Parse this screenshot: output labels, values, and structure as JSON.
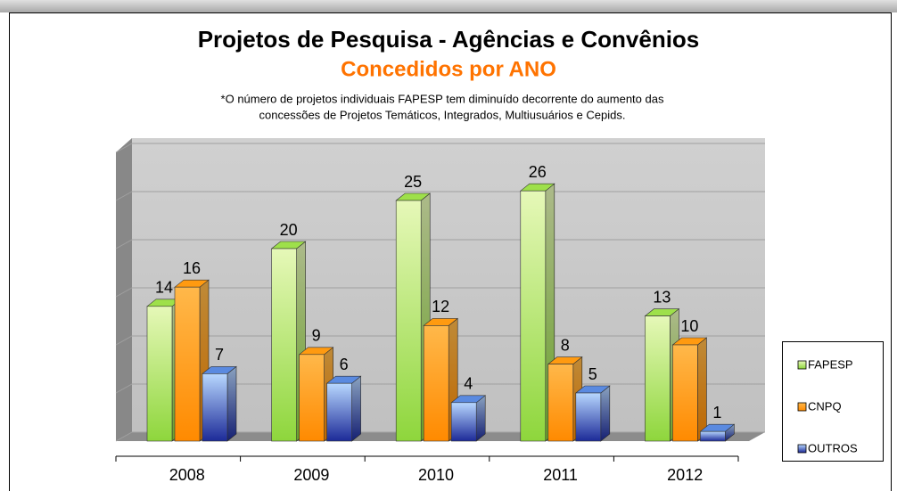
{
  "chart_data": {
    "type": "bar3d",
    "title": "Projetos de Pesquisa - Agências e Convênios",
    "subtitle": "Concedidos por ANO",
    "note": [
      "*O número de projetos individuais FAPESP tem diminuído decorrente do aumento das",
      "concessões de Projetos Temáticos, Integrados,  Multiusuários e Cepids."
    ],
    "categories": [
      "2008",
      "2009",
      "2010",
      "2011",
      "2012"
    ],
    "series": [
      {
        "name": "FAPESP",
        "color": "#9ee04a",
        "values": [
          14,
          20,
          25,
          26,
          13
        ]
      },
      {
        "name": "CNPQ",
        "color": "#ff9a10",
        "values": [
          16,
          9,
          12,
          8,
          10
        ]
      },
      {
        "name": "OUTROS",
        "color": "#5a8ae0",
        "values": [
          7,
          6,
          4,
          5,
          1
        ]
      }
    ],
    "ylim": [
      0,
      30
    ],
    "yticks": [
      0,
      5,
      10,
      15,
      20,
      25,
      30
    ],
    "grid": true,
    "legend": "right"
  }
}
